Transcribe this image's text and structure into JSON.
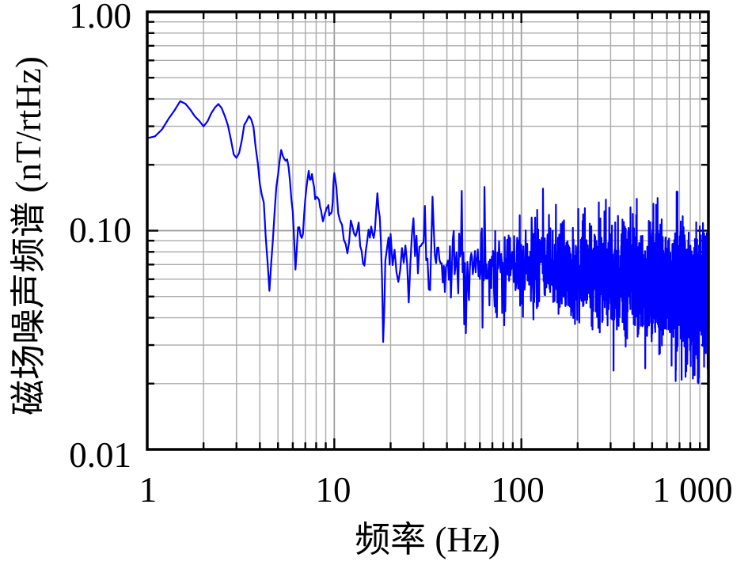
{
  "page": {
    "background": "#ffffff"
  },
  "chart_data": {
    "type": "line",
    "title": "",
    "xlabel": "频率 (Hz)",
    "ylabel": "磁场噪声频谱 (nT/rtHz)",
    "xscale": "log",
    "yscale": "log",
    "xlim": [
      1,
      1000
    ],
    "ylim": [
      0.01,
      1.0
    ],
    "x_ticks": [
      {
        "v": 1,
        "label": "1"
      },
      {
        "v": 10,
        "label": "10"
      },
      {
        "v": 100,
        "label": "100"
      },
      {
        "v": 1000,
        "label": "1 000"
      }
    ],
    "y_ticks": [
      {
        "v": 0.01,
        "label": "0.01"
      },
      {
        "v": 0.1,
        "label": "0.10"
      },
      {
        "v": 1.0,
        "label": "1.00"
      }
    ],
    "grid": {
      "major": true,
      "minor": true,
      "major_color": "#9a9a9a",
      "minor_color": "#ababab"
    },
    "frame_color": "#000000",
    "tick_color": "#000000",
    "legend": "none",
    "series": [
      {
        "name": "磁场噪声频谱",
        "color": "#0000ff",
        "line_width": 2.2,
        "anchors": [
          [
            1.0,
            0.258
          ],
          [
            1.1,
            0.27
          ],
          [
            1.2,
            0.293
          ],
          [
            1.35,
            0.34
          ],
          [
            1.5,
            0.387
          ],
          [
            1.6,
            0.383
          ],
          [
            1.75,
            0.352
          ],
          [
            1.9,
            0.312
          ],
          [
            2.0,
            0.296
          ],
          [
            2.1,
            0.312
          ],
          [
            2.2,
            0.346
          ],
          [
            2.35,
            0.374
          ],
          [
            2.5,
            0.366
          ],
          [
            2.7,
            0.3
          ],
          [
            2.9,
            0.226
          ],
          [
            3.0,
            0.212
          ],
          [
            3.1,
            0.226
          ],
          [
            3.3,
            0.3
          ],
          [
            3.5,
            0.338
          ],
          [
            3.7,
            0.298
          ],
          [
            3.9,
            0.2
          ],
          [
            4.05,
            0.146
          ],
          [
            4.18,
            0.142
          ],
          [
            4.35,
            0.082
          ],
          [
            4.5,
            0.053
          ],
          [
            4.7,
            0.092
          ],
          [
            4.9,
            0.16
          ],
          [
            5.2,
            0.232
          ],
          [
            5.45,
            0.212
          ],
          [
            5.7,
            0.194
          ],
          [
            6.0,
            0.12
          ],
          [
            6.2,
            0.066
          ],
          [
            6.45,
            0.11
          ],
          [
            6.75,
            0.088
          ],
          [
            7.0,
            0.14
          ],
          [
            7.25,
            0.19
          ],
          [
            7.45,
            0.174
          ],
          [
            7.65,
            0.184
          ],
          [
            7.9,
            0.133
          ],
          [
            8.2,
            0.146
          ],
          [
            8.7,
            0.112
          ],
          [
            9.2,
            0.13
          ],
          [
            9.6,
            0.114
          ],
          [
            10.1,
            0.195
          ],
          [
            10.5,
            0.122
          ],
          [
            11.0,
            0.104
          ],
          [
            11.7,
            0.078
          ],
          [
            12.3,
            0.11
          ],
          [
            13.0,
            0.094
          ],
          [
            13.6,
            0.1
          ],
          [
            14.4,
            0.068
          ],
          [
            15.2,
            0.104
          ],
          [
            16.2,
            0.094
          ],
          [
            17.2,
            0.15
          ],
          [
            17.7,
            0.1
          ],
          [
            18.3,
            0.034
          ],
          [
            19.0,
            0.08
          ],
          [
            19.6,
            0.098
          ],
          [
            21.0,
            0.085
          ],
          [
            25.0,
            0.075
          ],
          [
            30.0,
            0.08
          ],
          [
            40.0,
            0.075
          ],
          [
            50.0,
            0.077
          ],
          [
            70.0,
            0.071
          ],
          [
            100.0,
            0.069
          ],
          [
            150.0,
            0.067
          ],
          [
            250.0,
            0.064
          ],
          [
            400.0,
            0.06
          ],
          [
            600.0,
            0.056
          ],
          [
            1000.0,
            0.051
          ]
        ],
        "sigma_anchors": [
          [
            1,
            0.004
          ],
          [
            3.5,
            0.005
          ],
          [
            6,
            0.008
          ],
          [
            9,
            0.012
          ],
          [
            10,
            0.018
          ],
          [
            14,
            0.025
          ],
          [
            18,
            0.04
          ],
          [
            20,
            0.065
          ],
          [
            28,
            0.085
          ],
          [
            50,
            0.1
          ],
          [
            100,
            0.11
          ],
          [
            300,
            0.12
          ],
          [
            1000,
            0.135
          ]
        ],
        "spikes": [
          [
            18.3,
            0.031
          ],
          [
            25.2,
            0.047
          ],
          [
            33.4,
            0.143
          ],
          [
            47.8,
            0.152
          ],
          [
            50.5,
            0.034
          ],
          [
            62.0,
            0.036
          ]
        ],
        "sampling": {
          "bands": [
            {
              "f0": 1,
              "f1": 10,
              "df": 0.1
            },
            {
              "f0": 10,
              "f1": 20,
              "df": 0.25
            },
            {
              "f0": 20,
              "f1": 1000,
              "df": 0.5
            }
          ],
          "clamp": [
            0.014,
            0.45
          ]
        },
        "seed": 7
      }
    ]
  }
}
